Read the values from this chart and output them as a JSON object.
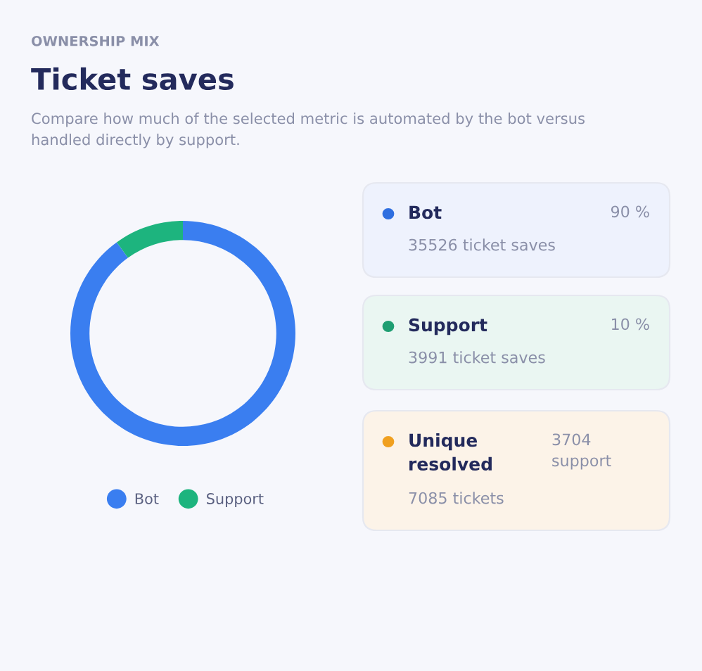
{
  "chart_data": [
    {
      "type": "donut",
      "title": "Ticket saves",
      "subtitle": "Compare how much of the selected metric is automated by the bot versus handled directly by support.",
      "annotations": [
        "OWNERSHIP MIX"
      ],
      "categories": [
        "Bot",
        "Support"
      ],
      "values": [
        90,
        10
      ],
      "colors": [
        "#3a7ef0",
        "#1db47e"
      ],
      "legend": "bottom"
    },
    {
      "type": "other",
      "colors": [
        "#2f6fe0",
        "#1f9e72",
        "#f0a020"
      ],
      "annotations": [
        "Bot",
        "90 %",
        "35526 ticket saves",
        "Support",
        "10 %",
        "3991 ticket saves",
        "Unique resolved",
        "3704 support",
        "7085 tickets"
      ]
    }
  ]
}
